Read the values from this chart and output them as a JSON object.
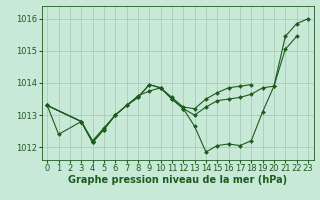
{
  "bg_color": "#c8e8d8",
  "grid_color": "#a0c8b0",
  "line_color": "#1e5c1e",
  "xlabel": "Graphe pression niveau de la mer (hPa)",
  "xlabel_fontsize": 7,
  "tick_fontsize": 6,
  "ylim": [
    1011.6,
    1016.4
  ],
  "xlim": [
    -0.5,
    23.5
  ],
  "yticks": [
    1012,
    1013,
    1014,
    1015,
    1016
  ],
  "xticks": [
    0,
    1,
    2,
    3,
    4,
    5,
    6,
    7,
    8,
    9,
    10,
    11,
    12,
    13,
    14,
    15,
    16,
    17,
    18,
    19,
    20,
    21,
    22,
    23
  ],
  "lines": [
    {
      "x": [
        0,
        1,
        3,
        4,
        5,
        6,
        7,
        8,
        9,
        10,
        11,
        12,
        13,
        14,
        15,
        16,
        17,
        18,
        19,
        20,
        21,
        22,
        23
      ],
      "y": [
        1013.3,
        1012.4,
        1012.8,
        1012.2,
        1012.6,
        1013.0,
        1013.3,
        1013.6,
        1013.75,
        1013.85,
        1013.5,
        1013.2,
        1012.65,
        1011.85,
        1012.05,
        1012.1,
        1012.05,
        1012.2,
        1013.1,
        1013.9,
        1015.45,
        1015.85,
        1016.0
      ]
    },
    {
      "x": [
        0,
        3,
        4,
        5,
        6,
        7,
        8,
        9,
        10,
        11,
        12,
        13,
        14,
        15,
        16,
        17,
        18,
        19,
        20,
        21,
        22
      ],
      "y": [
        1013.3,
        1012.8,
        1012.15,
        1012.55,
        1013.0,
        1013.3,
        1013.55,
        1013.95,
        1013.85,
        1013.5,
        1013.2,
        1013.0,
        1013.25,
        1013.45,
        1013.5,
        1013.55,
        1013.65,
        1013.85,
        1013.9,
        1015.05,
        1015.45
      ]
    },
    {
      "x": [
        0,
        3,
        4,
        5,
        6,
        7,
        8,
        9,
        10,
        11,
        12,
        13,
        14,
        15,
        16,
        17,
        18
      ],
      "y": [
        1013.3,
        1012.8,
        1012.15,
        1012.55,
        1013.0,
        1013.3,
        1013.55,
        1013.95,
        1013.85,
        1013.55,
        1013.25,
        1013.2,
        1013.5,
        1013.7,
        1013.85,
        1013.9,
        1013.95
      ]
    },
    {
      "x": [
        0,
        3,
        4
      ],
      "y": [
        1013.3,
        1012.8,
        1012.15
      ]
    }
  ]
}
